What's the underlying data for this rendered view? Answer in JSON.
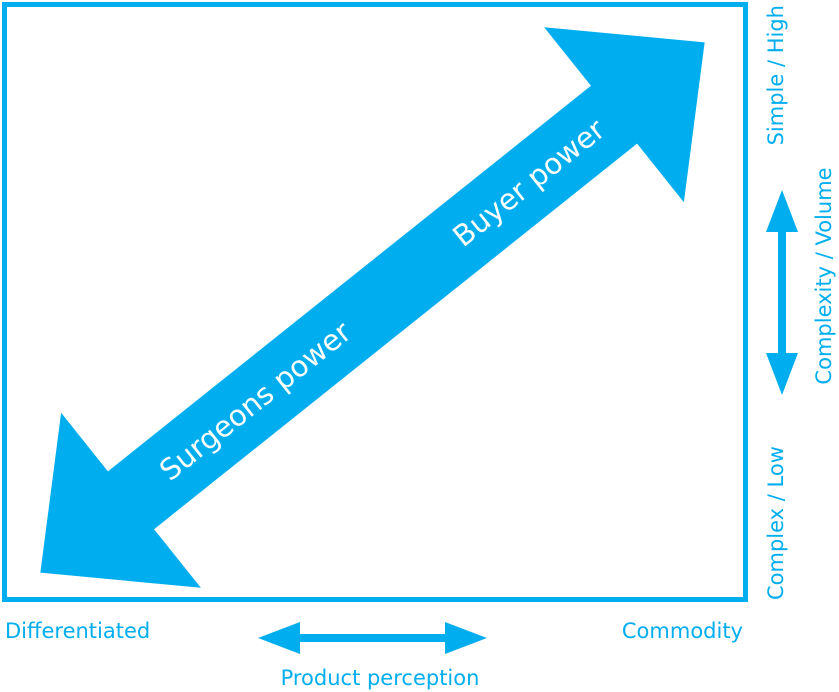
{
  "colors": {
    "accent": "#00AEEF",
    "text_on_arrow": "#FFFFFF"
  },
  "diagonal_arrow": {
    "upper_label": "Buyer power",
    "lower_label": "Surgeons power"
  },
  "x_axis": {
    "left_label": "Differentiated",
    "right_label": "Commodity",
    "title": "Product perception"
  },
  "y_axis": {
    "top_label": "Simple / High",
    "bottom_label": "Complex / Low",
    "title": "Complexity / Volume"
  }
}
